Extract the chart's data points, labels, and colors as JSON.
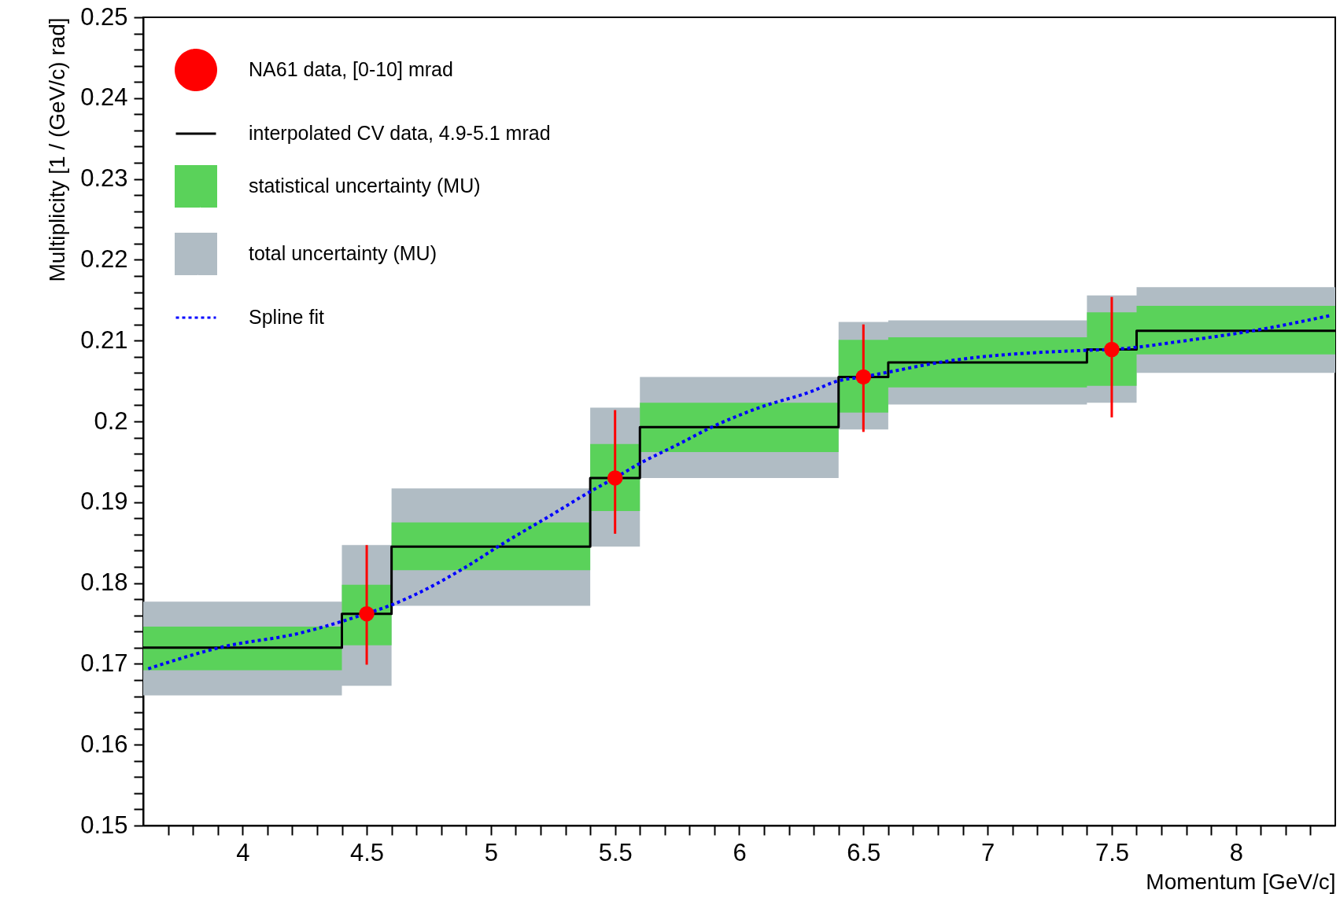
{
  "chart_data": {
    "type": "step",
    "xlabel": "Momentum [GeV/c]",
    "ylabel": "Multiplicity [1 / (GeV/c) rad]",
    "xlim": [
      3.6,
      8.4
    ],
    "ylim": [
      0.15,
      0.25
    ],
    "xticks": [
      {
        "value": 3.7,
        "label": null
      },
      {
        "value": 3.8,
        "label": null
      },
      {
        "value": 3.9,
        "label": null
      },
      4,
      {
        "value": 4.1,
        "label": null
      },
      {
        "value": 4.2,
        "label": null
      },
      {
        "value": 4.3,
        "label": null
      },
      {
        "value": 4.4,
        "label": null
      },
      4.5,
      {
        "value": 4.6,
        "label": null
      },
      {
        "value": 4.7,
        "label": null
      },
      {
        "value": 4.8,
        "label": null
      },
      {
        "value": 4.9,
        "label": null
      },
      5,
      {
        "value": 5.1,
        "label": null
      },
      {
        "value": 5.2,
        "label": null
      },
      {
        "value": 5.3,
        "label": null
      },
      {
        "value": 5.4,
        "label": null
      },
      5.5,
      {
        "value": 5.6,
        "label": null
      },
      {
        "value": 5.7,
        "label": null
      },
      {
        "value": 5.8,
        "label": null
      },
      {
        "value": 5.9,
        "label": null
      },
      6,
      {
        "value": 6.1,
        "label": null
      },
      {
        "value": 6.2,
        "label": null
      },
      {
        "value": 6.3,
        "label": null
      },
      {
        "value": 6.4,
        "label": null
      },
      6.5,
      {
        "value": 6.6,
        "label": null
      },
      {
        "value": 6.7,
        "label": null
      },
      {
        "value": 6.8,
        "label": null
      },
      {
        "value": 6.9,
        "label": null
      },
      7,
      {
        "value": 7.1,
        "label": null
      },
      {
        "value": 7.2,
        "label": null
      },
      {
        "value": 7.3,
        "label": null
      },
      {
        "value": 7.4,
        "label": null
      },
      7.5,
      {
        "value": 7.6,
        "label": null
      },
      {
        "value": 7.7,
        "label": null
      },
      {
        "value": 7.8,
        "label": null
      },
      {
        "value": 7.9,
        "label": null
      },
      8,
      {
        "value": 8.1,
        "label": null
      },
      {
        "value": 8.2,
        "label": null
      },
      {
        "value": 8.3,
        "label": null
      }
    ],
    "yticks": [
      0.15,
      {
        "value": 0.152,
        "label": null
      },
      {
        "value": 0.154,
        "label": null
      },
      {
        "value": 0.156,
        "label": null
      },
      {
        "value": 0.158,
        "label": null
      },
      0.16,
      {
        "value": 0.162,
        "label": null
      },
      {
        "value": 0.164,
        "label": null
      },
      {
        "value": 0.166,
        "label": null
      },
      {
        "value": 0.168,
        "label": null
      },
      0.17,
      {
        "value": 0.172,
        "label": null
      },
      {
        "value": 0.174,
        "label": null
      },
      {
        "value": 0.176,
        "label": null
      },
      {
        "value": 0.178,
        "label": null
      },
      0.18,
      {
        "value": 0.182,
        "label": null
      },
      {
        "value": 0.184,
        "label": null
      },
      {
        "value": 0.186,
        "label": null
      },
      {
        "value": 0.188,
        "label": null
      },
      0.19,
      {
        "value": 0.192,
        "label": null
      },
      {
        "value": 0.194,
        "label": null
      },
      {
        "value": 0.196,
        "label": null
      },
      {
        "value": 0.198,
        "label": null
      },
      0.2,
      {
        "value": 0.202,
        "label": null
      },
      {
        "value": 0.204,
        "label": null
      },
      {
        "value": 0.206,
        "label": null
      },
      {
        "value": 0.208,
        "label": null
      },
      0.21,
      {
        "value": 0.212,
        "label": null
      },
      {
        "value": 0.214,
        "label": null
      },
      {
        "value": 0.216,
        "label": null
      },
      {
        "value": 0.218,
        "label": null
      },
      0.22,
      {
        "value": 0.222,
        "label": null
      },
      {
        "value": 0.224,
        "label": null
      },
      {
        "value": 0.226,
        "label": null
      },
      {
        "value": 0.228,
        "label": null
      },
      0.23,
      {
        "value": 0.232,
        "label": null
      },
      {
        "value": 0.234,
        "label": null
      },
      {
        "value": 0.236,
        "label": null
      },
      {
        "value": 0.238,
        "label": null
      },
      0.24,
      {
        "value": 0.242,
        "label": null
      },
      {
        "value": 0.244,
        "label": null
      },
      {
        "value": 0.246,
        "label": null
      },
      {
        "value": 0.248,
        "label": null
      },
      0.25
    ],
    "grid": false,
    "legend": "top left",
    "series": [
      {
        "name": "NA61 data, [0-10] mrad",
        "type": "scatter",
        "color": "#ff0000",
        "marker": "circle",
        "x": [
          4.5,
          5.5,
          6.5,
          7.5
        ],
        "values": [
          0.1762,
          0.193,
          0.2055,
          0.2089
        ],
        "errors": [
          [
            0.1699,
            0.1847
          ],
          [
            0.1861,
            0.2014
          ],
          [
            0.1987,
            0.212
          ],
          [
            0.2005,
            0.2154
          ]
        ]
      },
      {
        "name": "interpolated CV data, 4.9-5.1 mrad",
        "color": "#000000",
        "x": [
          3.6,
          4.4,
          4.6,
          5.4,
          5.6,
          6.4,
          6.6,
          7.4,
          7.6,
          8.4
        ],
        "values": [
          0.172,
          0.1762,
          0.1845,
          0.193,
          0.1993,
          0.2055,
          0.2073,
          0.2089,
          0.2112,
          0.2112
        ]
      },
      {
        "name": "statistical uncertainty (MU)",
        "type": "area",
        "color": "#5ad25a",
        "x": [
          3.6,
          4.4,
          4.6,
          5.4,
          5.6,
          6.4,
          6.6,
          7.4,
          7.6,
          8.4
        ],
        "values": [
          null,
          null,
          null,
          null,
          null,
          null,
          null,
          null,
          null,
          null
        ],
        "lower": [
          0.1692,
          0.1723,
          0.1816,
          0.1889,
          0.1962,
          0.2011,
          0.2042,
          0.2044,
          0.2083,
          0.2083
        ],
        "upper": [
          0.1746,
          0.1798,
          0.1875,
          0.1972,
          0.2023,
          0.2101,
          0.2104,
          0.2135,
          0.2143,
          0.2143
        ]
      },
      {
        "name": "total uncertainty (MU)",
        "type": "area",
        "color": "#b0bcc4",
        "x": [
          3.6,
          4.4,
          4.6,
          5.4,
          5.6,
          6.4,
          6.6,
          7.4,
          7.6,
          8.4
        ],
        "values": [
          null,
          null,
          null,
          null,
          null,
          null,
          null,
          null,
          null,
          null
        ],
        "lower": [
          0.1661,
          0.1673,
          0.1772,
          0.1845,
          0.193,
          0.199,
          0.2021,
          0.2023,
          0.206,
          0.206
        ],
        "upper": [
          0.1777,
          0.1847,
          0.1917,
          0.2017,
          0.2055,
          0.2123,
          0.2125,
          0.2156,
          0.2166,
          0.2166
        ]
      },
      {
        "name": "Spline fit",
        "type": "line",
        "color": "#0000ff",
        "line_style": "dotted",
        "x": [
          3.62,
          3.92,
          4.23,
          4.394,
          4.496,
          4.592,
          4.697,
          4.9,
          5.044,
          5.237,
          5.399,
          5.499,
          5.594,
          5.763,
          5.89,
          6.08,
          6.29,
          6.396,
          6.495,
          6.87,
          7.4,
          7.495,
          7.8,
          8.065,
          8.38
        ],
        "values": [
          0.1694,
          0.1721,
          0.1738,
          0.1752,
          0.1762,
          0.1772,
          0.1786,
          0.182,
          0.1848,
          0.1883,
          0.1913,
          0.193,
          0.1947,
          0.1973,
          0.1993,
          0.2017,
          0.2037,
          0.205,
          0.2055,
          0.2076,
          0.2088,
          0.2089,
          0.21,
          0.2112,
          0.2131
        ]
      }
    ]
  }
}
